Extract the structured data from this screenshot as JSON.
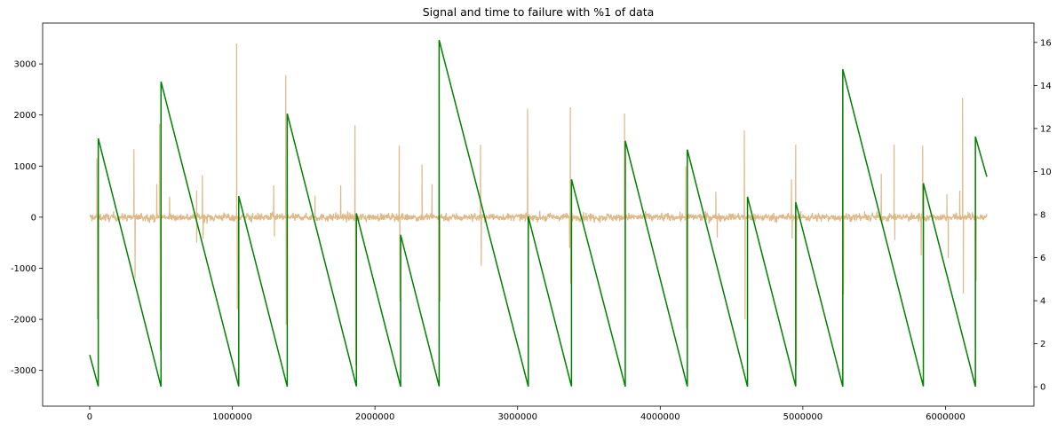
{
  "chart_data": {
    "type": "line",
    "title": "Signal and time to failure with %1 of data",
    "xlabel": "",
    "ylabel_left": "",
    "ylabel_right": "",
    "xlim": [
      -330000,
      6620000
    ],
    "ylim_left": [
      -3700,
      3800
    ],
    "ylim_right": [
      -0.9,
      16.9
    ],
    "x_ticks": [
      0,
      1000000,
      2000000,
      3000000,
      4000000,
      5000000,
      6000000
    ],
    "x_tick_labels": [
      "0",
      "1000000",
      "2000000",
      "3000000",
      "4000000",
      "5000000",
      "6000000"
    ],
    "y_left_ticks": [
      -3000,
      -2000,
      -1000,
      0,
      1000,
      2000,
      3000
    ],
    "y_left_tick_labels": [
      "-3000",
      "-2000",
      "-1000",
      "0",
      "1000",
      "2000",
      "3000"
    ],
    "y_right_ticks": [
      0,
      2,
      4,
      6,
      8,
      10,
      12,
      14,
      16
    ],
    "y_right_tick_labels": [
      "0",
      "2",
      "4",
      "6",
      "8",
      "10",
      "12",
      "14",
      "16"
    ],
    "grid": false,
    "series": [
      {
        "axis": "left",
        "color": "#DEB887",
        "x_range": [
          0,
          6290000
        ],
        "noise_amplitude": 100,
        "spikes": [
          {
            "x": 50000,
            "y": 1150
          },
          {
            "x": 55000,
            "y": -2000
          },
          {
            "x": 310000,
            "y": 1330
          },
          {
            "x": 318000,
            "y": -1200
          },
          {
            "x": 490000,
            "y": 1830
          },
          {
            "x": 495000,
            "y": -2600
          },
          {
            "x": 470000,
            "y": 650
          },
          {
            "x": 560000,
            "y": 400
          },
          {
            "x": 750000,
            "y": 520
          },
          {
            "x": 750000,
            "y": -500
          },
          {
            "x": 790000,
            "y": 820
          },
          {
            "x": 795000,
            "y": -420
          },
          {
            "x": 1030000,
            "y": 3400
          },
          {
            "x": 1035000,
            "y": -1800
          },
          {
            "x": 1290000,
            "y": 620
          },
          {
            "x": 1295000,
            "y": -380
          },
          {
            "x": 1375000,
            "y": 2780
          },
          {
            "x": 1378000,
            "y": -2100
          },
          {
            "x": 1580000,
            "y": 420
          },
          {
            "x": 1760000,
            "y": 620
          },
          {
            "x": 1860000,
            "y": 1800
          },
          {
            "x": 1865000,
            "y": -2900
          },
          {
            "x": 2170000,
            "y": 1400
          },
          {
            "x": 2175000,
            "y": -1650
          },
          {
            "x": 2330000,
            "y": 1030
          },
          {
            "x": 2400000,
            "y": 650
          },
          {
            "x": 2450000,
            "y": 3450
          },
          {
            "x": 2455000,
            "y": -1650
          },
          {
            "x": 2740000,
            "y": 1420
          },
          {
            "x": 2745000,
            "y": -950
          },
          {
            "x": 3070000,
            "y": 2120
          },
          {
            "x": 3075000,
            "y": -750
          },
          {
            "x": 3370000,
            "y": 2150
          },
          {
            "x": 3372000,
            "y": -1300
          },
          {
            "x": 3365000,
            "y": -600
          },
          {
            "x": 3750000,
            "y": 2030
          },
          {
            "x": 3755000,
            "y": -2400
          },
          {
            "x": 4180000,
            "y": 1000
          },
          {
            "x": 4185000,
            "y": -2200
          },
          {
            "x": 4390000,
            "y": 500
          },
          {
            "x": 4400000,
            "y": -400
          },
          {
            "x": 4590000,
            "y": 1700
          },
          {
            "x": 4595000,
            "y": -2000
          },
          {
            "x": 4920000,
            "y": 740
          },
          {
            "x": 4925000,
            "y": -420
          },
          {
            "x": 4950000,
            "y": 1420
          },
          {
            "x": 4955000,
            "y": -2900
          },
          {
            "x": 5280000,
            "y": 2190
          },
          {
            "x": 5285000,
            "y": -1520
          },
          {
            "x": 5550000,
            "y": 850
          },
          {
            "x": 5640000,
            "y": 1420
          },
          {
            "x": 5645000,
            "y": -450
          },
          {
            "x": 5830000,
            "y": -750
          },
          {
            "x": 5840000,
            "y": 1400
          },
          {
            "x": 5845000,
            "y": -2850
          },
          {
            "x": 6010000,
            "y": 450
          },
          {
            "x": 6020000,
            "y": -800
          },
          {
            "x": 6100000,
            "y": 520
          },
          {
            "x": 6120000,
            "y": 2330
          },
          {
            "x": 6125000,
            "y": -1500
          },
          {
            "x": 6210000,
            "y": 1550
          },
          {
            "x": 6215000,
            "y": -1250
          }
        ]
      },
      {
        "axis": "right",
        "color": "#008000",
        "points": [
          [
            0,
            1.48
          ],
          [
            60000,
            0.02
          ],
          [
            60000,
            11.54
          ],
          [
            500000,
            0.01
          ],
          [
            500000,
            14.18
          ],
          [
            1045000,
            0.02
          ],
          [
            1045000,
            8.86
          ],
          [
            1385000,
            0.01
          ],
          [
            1385000,
            12.69
          ],
          [
            1870000,
            0.02
          ],
          [
            1870000,
            8.06
          ],
          [
            2180000,
            0.01
          ],
          [
            2180000,
            7.06
          ],
          [
            2450000,
            0.02
          ],
          [
            2450000,
            16.11
          ],
          [
            3075000,
            0.01
          ],
          [
            3075000,
            7.91
          ],
          [
            3378000,
            0.02
          ],
          [
            3378000,
            9.64
          ],
          [
            3755000,
            0.01
          ],
          [
            3755000,
            11.43
          ],
          [
            4190000,
            0.02
          ],
          [
            4190000,
            11.02
          ],
          [
            4612000,
            0.01
          ],
          [
            4612000,
            8.83
          ],
          [
            4950000,
            0.02
          ],
          [
            4950000,
            8.57
          ],
          [
            5280000,
            0.01
          ],
          [
            5280000,
            14.75
          ],
          [
            5845000,
            0.02
          ],
          [
            5845000,
            9.46
          ],
          [
            6210000,
            0.01
          ],
          [
            6210000,
            11.62
          ],
          [
            6290000,
            9.76
          ]
        ]
      }
    ]
  }
}
